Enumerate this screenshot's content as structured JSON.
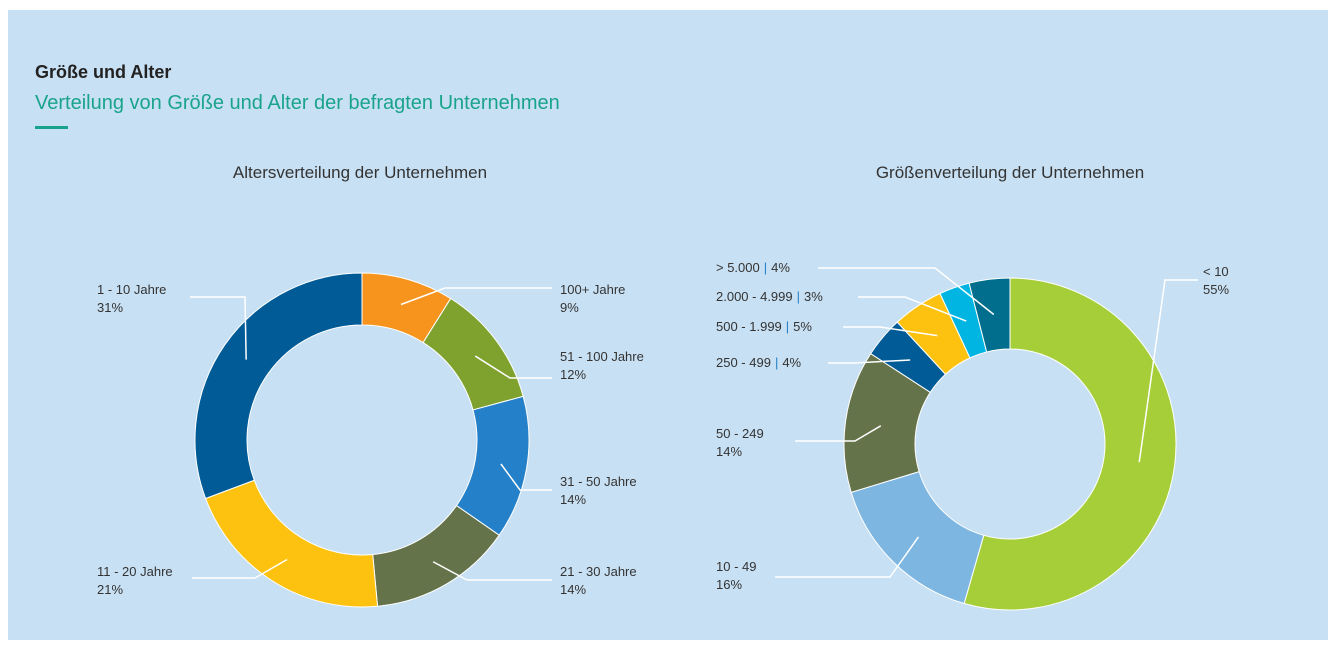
{
  "header": {
    "title": "Größe und Alter",
    "subtitle": "Verteilung von Größe und Alter der befragten Unternehmen"
  },
  "chart_data": [
    {
      "type": "pie",
      "title": "Altersverteilung der Unternehmen",
      "categories": [
        "100+ Jahre",
        "51 - 100 Jahre",
        "31 - 50 Jahre",
        "21 - 30 Jahre",
        "11 - 20 Jahre",
        "1 - 10 Jahre"
      ],
      "values": [
        9,
        12,
        14,
        14,
        21,
        31
      ],
      "value_labels": [
        "9%",
        "12%",
        "14%",
        "14%",
        "21%",
        "31%"
      ],
      "colors": [
        "#f7941d",
        "#7fa22f",
        "#2480c8",
        "#65734a",
        "#fdc20f",
        "#005b96"
      ]
    },
    {
      "type": "pie",
      "title": "Größenverteilung der Unternehmen",
      "categories": [
        "< 10",
        "10 - 49",
        "50 - 249",
        "250 - 499",
        "500 - 1.999",
        "2.000 - 4.999",
        "> 5.000"
      ],
      "values": [
        55,
        16,
        14,
        4,
        5,
        3,
        4
      ],
      "value_labels": [
        "55%",
        "16%",
        "14%",
        "4%",
        "5%",
        "3%",
        "4%"
      ],
      "label_separator": "|",
      "colors": [
        "#a6ce39",
        "#7eb6e2",
        "#65734a",
        "#005b96",
        "#fdc20f",
        "#00b5e2",
        "#006e8c"
      ]
    }
  ]
}
